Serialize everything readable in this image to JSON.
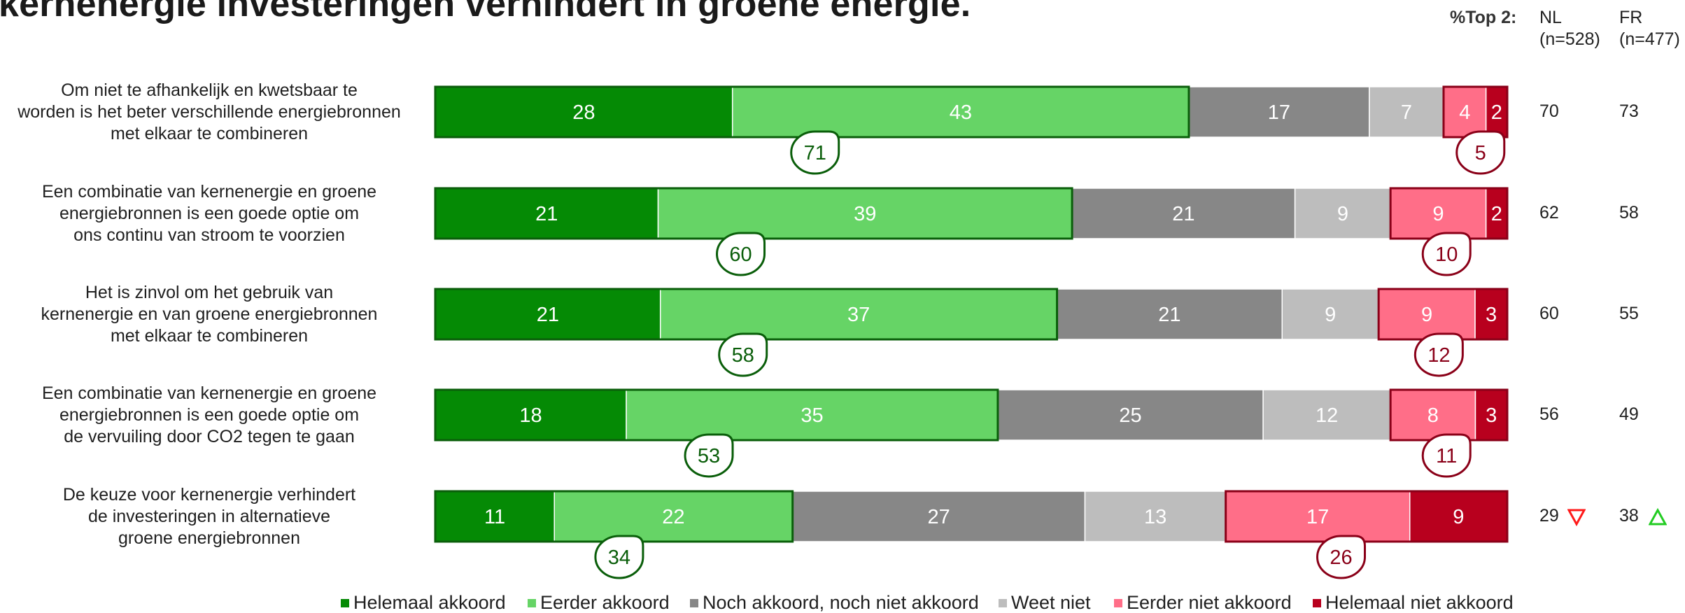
{
  "title": "kernenergie investeringen verhindert in groene energie.",
  "header": {
    "top2_label": "%Top 2:",
    "col1": "NL",
    "col1_n": "(n=528)",
    "col2": "FR",
    "col2_n": "(n=477)"
  },
  "colors": {
    "helemaal_akkoord": "#058A05",
    "eerder_akkoord": "#66D466",
    "neutraal": "#878787",
    "weet_niet": "#BDBDBD",
    "eerder_niet_akkoord": "#FF6E88",
    "helemaal_niet_akkoord": "#B8001E",
    "top_outline": "#0A5E0A",
    "bottom_outline": "#8A0018",
    "arrow_down": "#FF1A1A",
    "arrow_up": "#22CC22"
  },
  "rows": [
    {
      "label_lines": [
        "Om niet te afhankelijk en kwetsbaar te",
        "worden is het beter verschillende energiebronnen",
        "met elkaar te combineren"
      ],
      "nl": "70",
      "fr": "73",
      "nl_marker": "",
      "fr_marker": ""
    },
    {
      "label_lines": [
        "Een combinatie van kernenergie en groene",
        "energiebronnen is een goede optie om",
        "ons continu van stroom te voorzien"
      ],
      "nl": "62",
      "fr": "58",
      "nl_marker": "",
      "fr_marker": ""
    },
    {
      "label_lines": [
        "Het is zinvol om het gebruik van",
        "kernenergie en van groene energiebronnen",
        "met elkaar te combineren"
      ],
      "nl": "60",
      "fr": "55",
      "nl_marker": "",
      "fr_marker": ""
    },
    {
      "label_lines": [
        "Een combinatie van kernenergie en groene",
        "energiebronnen is een goede optie om",
        "de vervuiling door CO2 tegen te gaan"
      ],
      "nl": "56",
      "fr": "49",
      "nl_marker": "",
      "fr_marker": ""
    },
    {
      "label_lines": [
        "De keuze voor kernenergie verhindert",
        "de investeringen in alternatieve",
        "groene energiebronnen"
      ],
      "nl": "29",
      "fr": "38",
      "nl_marker": "down-triangle",
      "fr_marker": "up-triangle"
    }
  ],
  "chart_data": {
    "type": "bar",
    "orientation": "horizontal-stacked",
    "categories": [
      "Om niet te afhankelijk en kwetsbaar te worden is het beter verschillende energiebronnen met elkaar te combineren",
      "Een combinatie van kernenergie en groene energiebronnen is een goede optie om ons continu van stroom te voorzien",
      "Het is zinvol om het gebruik van kernenergie en van groene energiebronnen met elkaar te combineren",
      "Een combinatie van kernenergie en groene energiebronnen is een goede optie om de vervuiling door CO2 tegen te gaan",
      "De keuze voor kernenergie verhindert de investeringen in alternatieve groene energiebronnen"
    ],
    "series": [
      {
        "name": "Helemaal akkoord",
        "color": "#058A05",
        "values": [
          28,
          21,
          21,
          18,
          11
        ]
      },
      {
        "name": "Eerder akkoord",
        "color": "#66D466",
        "values": [
          43,
          39,
          37,
          35,
          22
        ]
      },
      {
        "name": "Noch akkoord, noch niet akkoord",
        "color": "#878787",
        "values": [
          17,
          21,
          21,
          25,
          27
        ]
      },
      {
        "name": "Weet niet",
        "color": "#BDBDBD",
        "values": [
          7,
          9,
          9,
          12,
          13
        ]
      },
      {
        "name": "Eerder niet akkoord",
        "color": "#FF6E88",
        "values": [
          4,
          9,
          9,
          8,
          17
        ]
      },
      {
        "name": "Helemaal niet akkoord",
        "color": "#B8001E",
        "values": [
          2,
          2,
          3,
          3,
          9
        ]
      }
    ],
    "top2": [
      71,
      60,
      58,
      53,
      34
    ],
    "bottom2": [
      5,
      10,
      12,
      11,
      26
    ],
    "xlim": [
      0,
      100
    ],
    "legend_position": "bottom"
  }
}
